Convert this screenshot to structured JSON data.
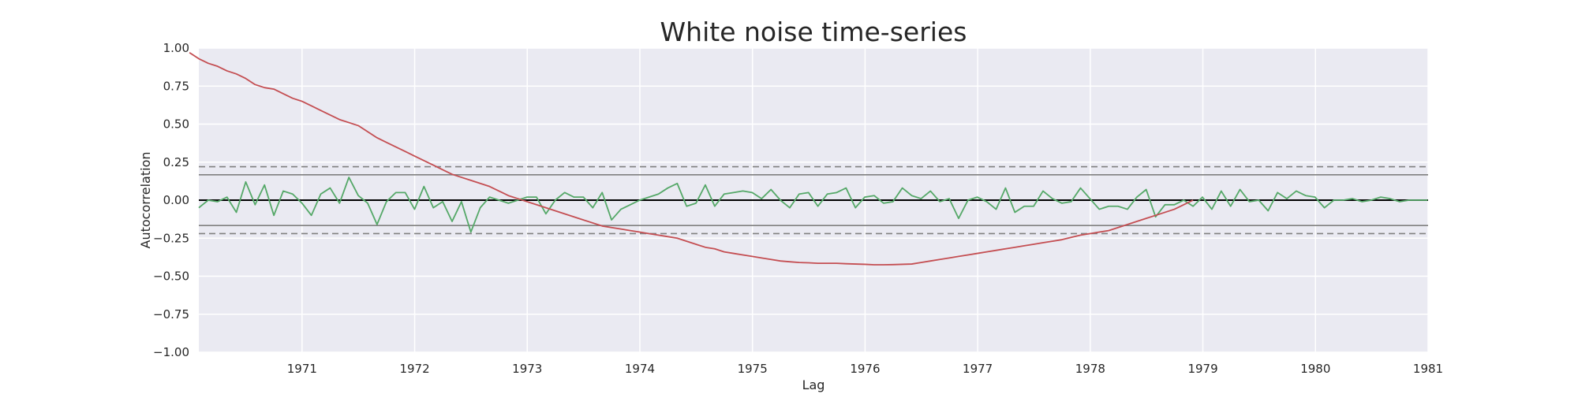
{
  "chart_data": {
    "type": "line",
    "title": "White noise time-series",
    "xlabel": "Lag",
    "ylabel": "Autocorrelation",
    "xlim": [
      1970.0833,
      1981
    ],
    "ylim": [
      -1,
      1
    ],
    "grid": true,
    "background": "#eaeaf2",
    "x_ticks": [
      {
        "value": 1971,
        "label": "1971"
      },
      {
        "value": 1972,
        "label": "1972"
      },
      {
        "value": 1973,
        "label": "1973"
      },
      {
        "value": 1974,
        "label": "1974"
      },
      {
        "value": 1975,
        "label": "1975"
      },
      {
        "value": 1976,
        "label": "1976"
      },
      {
        "value": 1977,
        "label": "1977"
      },
      {
        "value": 1978,
        "label": "1978"
      },
      {
        "value": 1979,
        "label": "1979"
      },
      {
        "value": 1980,
        "label": "1980"
      },
      {
        "value": 1981,
        "label": "1981"
      }
    ],
    "y_ticks": [
      {
        "value": 1.0,
        "label": "1.00"
      },
      {
        "value": 0.75,
        "label": "0.75"
      },
      {
        "value": 0.5,
        "label": "0.50"
      },
      {
        "value": 0.25,
        "label": "0.25"
      },
      {
        "value": 0.0,
        "label": "0.00"
      },
      {
        "value": -0.25,
        "label": "−0.25"
      },
      {
        "value": -0.5,
        "label": "−0.50"
      },
      {
        "value": -0.75,
        "label": "−0.75"
      },
      {
        "value": -1.0,
        "label": "−1.00"
      }
    ],
    "reference_lines": [
      {
        "y": 0.0,
        "color": "#000000",
        "style": "solid"
      },
      {
        "y": 0.167,
        "color": "#808080",
        "style": "solid"
      },
      {
        "y": -0.167,
        "color": "#808080",
        "style": "solid"
      },
      {
        "y": 0.22,
        "color": "#808080",
        "style": "dashed"
      },
      {
        "y": -0.22,
        "color": "#808080",
        "style": "dashed"
      }
    ],
    "series": [
      {
        "color": "#55a868",
        "x_start": 1970.0833,
        "x_step": 0.0833,
        "values": [
          -0.05,
          0.0,
          -0.01,
          0.02,
          -0.08,
          0.12,
          -0.03,
          0.1,
          -0.1,
          0.06,
          0.04,
          -0.02,
          -0.1,
          0.04,
          0.08,
          -0.02,
          0.15,
          0.03,
          -0.02,
          -0.16,
          -0.01,
          0.05,
          0.05,
          -0.06,
          0.09,
          -0.05,
          -0.01,
          -0.14,
          -0.01,
          -0.21,
          -0.05,
          0.02,
          0.0,
          -0.02,
          0.0,
          0.02,
          0.02,
          -0.09,
          0.0,
          0.05,
          0.02,
          0.02,
          -0.05,
          0.05,
          -0.13,
          -0.06,
          -0.03,
          0.0,
          0.02,
          0.04,
          0.08,
          0.11,
          -0.04,
          -0.02,
          0.1,
          -0.04,
          0.04,
          0.05,
          0.06,
          0.05,
          0.01,
          0.07,
          0.0,
          -0.05,
          0.04,
          0.05,
          -0.04,
          0.04,
          0.05,
          0.08,
          -0.05,
          0.02,
          0.03,
          -0.02,
          -0.01,
          0.08,
          0.03,
          0.01,
          0.06,
          -0.01,
          0.01,
          -0.12,
          0.0,
          0.02,
          -0.01,
          -0.06,
          0.08,
          -0.08,
          -0.04,
          -0.04,
          0.06,
          0.01,
          -0.02,
          -0.01,
          0.08,
          0.01,
          -0.06,
          -0.04,
          -0.04,
          -0.06,
          0.02,
          0.07,
          -0.11,
          -0.03,
          -0.03,
          0.0,
          -0.04,
          0.02,
          -0.06,
          0.06,
          -0.04,
          0.07,
          -0.01,
          0.0,
          -0.07,
          0.05,
          0.01,
          0.06,
          0.03,
          0.02,
          -0.05,
          0.0,
          0.0,
          0.01,
          -0.01,
          0.0,
          0.02,
          0.01,
          -0.01,
          0.0,
          0.0,
          0.0
        ]
      },
      {
        "color": "#c44e52",
        "x_start": 1970.0,
        "x_step": 0.0833,
        "values": [
          0.97,
          0.93,
          0.9,
          0.88,
          0.85,
          0.83,
          0.8,
          0.76,
          0.74,
          0.73,
          0.7,
          0.67,
          0.65,
          0.62,
          0.59,
          0.56,
          0.53,
          0.51,
          0.49,
          0.45,
          0.41,
          0.38,
          0.35,
          0.32,
          0.29,
          0.26,
          0.23,
          0.2,
          0.17,
          0.15,
          0.13,
          0.11,
          0.09,
          0.06,
          0.03,
          0.01,
          -0.01,
          -0.03,
          -0.05,
          -0.07,
          -0.09,
          -0.11,
          -0.13,
          -0.15,
          -0.17,
          -0.18,
          -0.19,
          -0.2,
          -0.21,
          -0.22,
          -0.23,
          -0.24,
          -0.25,
          -0.27,
          -0.29,
          -0.31,
          -0.32,
          -0.34,
          -0.35,
          -0.36,
          -0.37,
          -0.38,
          -0.39,
          -0.4,
          -0.405,
          -0.41,
          -0.412,
          -0.415,
          -0.415,
          -0.415,
          -0.418,
          -0.42,
          -0.422,
          -0.425,
          -0.425,
          -0.424,
          -0.422,
          -0.42,
          -0.41,
          -0.4,
          -0.39,
          -0.38,
          -0.37,
          -0.36,
          -0.35,
          -0.34,
          -0.33,
          -0.32,
          -0.31,
          -0.3,
          -0.29,
          -0.28,
          -0.27,
          -0.26,
          -0.245,
          -0.23,
          -0.22,
          -0.21,
          -0.2,
          -0.18,
          -0.16,
          -0.14,
          -0.12,
          -0.1,
          -0.08,
          -0.06,
          -0.03,
          0.0
        ]
      }
    ]
  }
}
